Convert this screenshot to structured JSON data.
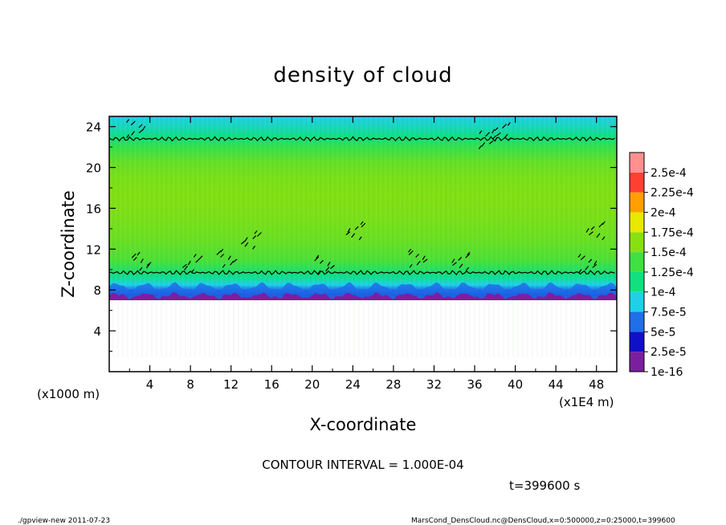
{
  "chart_data": {
    "type": "heatmap",
    "title": "density of cloud",
    "xlabel": "X-coordinate",
    "ylabel": "Z-coordinate",
    "x_unit": "(x1E4 m)",
    "y_unit": "(x1000 m)",
    "xlim": [
      0,
      50
    ],
    "ylim": [
      0,
      25
    ],
    "xticks": [
      "4",
      "8",
      "12",
      "16",
      "20",
      "24",
      "28",
      "32",
      "36",
      "40",
      "44",
      "48"
    ],
    "yticks": [
      "4",
      "8",
      "12",
      "16",
      "20",
      "24"
    ],
    "xtick_values": [
      4,
      8,
      12,
      16,
      20,
      24,
      28,
      32,
      36,
      40,
      44,
      48
    ],
    "ytick_values": [
      4,
      8,
      12,
      16,
      20,
      24
    ],
    "colorbar": {
      "levels": [
        "1e-16",
        "2.5e-5",
        "5e-5",
        "7.5e-5",
        "1e-4",
        "1.25e-4",
        "1.5e-4",
        "1.75e-4",
        "2e-4",
        "2.25e-4",
        "2.5e-4"
      ],
      "colors": [
        "#7b1fa0",
        "#1010c8",
        "#1e6fe8",
        "#20d0e8",
        "#10e080",
        "#40e040",
        "#88e010",
        "#e8e800",
        "#ffa000",
        "#ff4030",
        "#ff9090"
      ]
    },
    "profile": {
      "z": [
        7,
        7.5,
        8,
        8.5,
        9,
        9.5,
        10,
        11,
        13,
        15,
        17,
        19,
        20.5,
        22,
        23,
        24,
        25
      ],
      "density": [
        1e-16,
        2.5e-05,
        5e-05,
        7.5e-05,
        9e-05,
        0.0001,
        0.000112,
        0.00013,
        0.00014,
        0.000145,
        0.000148,
        0.000145,
        0.000138,
        0.00012,
        0.0001,
        8.5e-05,
        7.5e-05
      ]
    },
    "contour_levels": [
      {
        "value": 0.0001,
        "z": 9.7
      },
      {
        "value": 0.0001,
        "z": 22.8
      }
    ]
  },
  "contour_interval": "CONTOUR INTERVAL = 1.000E-04",
  "time_label": "t=399600 s",
  "footer_left": "./gpview-new  2011-07-23",
  "footer_right": "MarsCond_DensCloud.nc@DensCloud,x=0:500000,z=0:25000,t=399600"
}
